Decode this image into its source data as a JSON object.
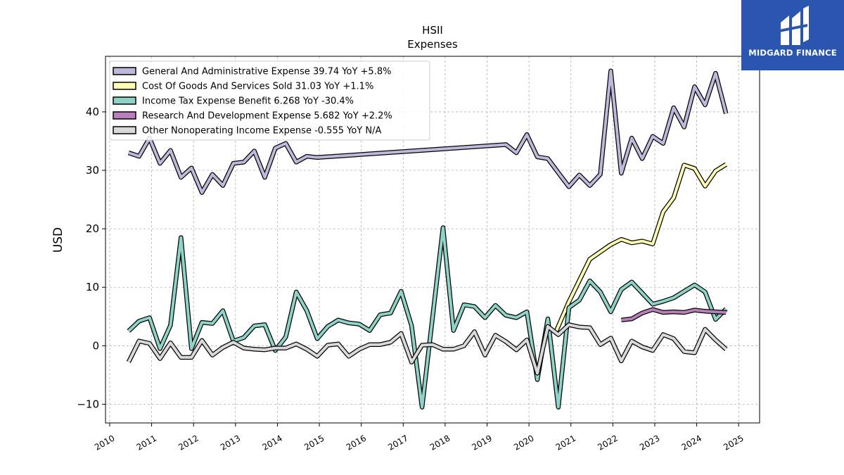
{
  "brand": {
    "name": "MIDGARD FINANCE",
    "background": "#2a56b0"
  },
  "chart_data": {
    "type": "line",
    "title": "HSII",
    "subtitle": "Expenses",
    "xlabel": "",
    "ylabel": "USD",
    "xlim": [
      2009.9,
      2025.5
    ],
    "ylim": [
      -13.2,
      49.5
    ],
    "yticks": [
      -10,
      0,
      10,
      20,
      30,
      40
    ],
    "xticks": [
      2010,
      2011,
      2012,
      2013,
      2014,
      2015,
      2016,
      2017,
      2018,
      2019,
      2020,
      2021,
      2022,
      2023,
      2024,
      2025
    ],
    "grid": true,
    "legend_position": "top-left",
    "series": [
      {
        "name": "General And Administrative Expense",
        "legend": "General And Administrative Expense  39.74 YoY +5.8%",
        "color": "#bcb9da",
        "points": [
          [
            2010.45,
            33.0
          ],
          [
            2010.7,
            32.4
          ],
          [
            2010.95,
            35.5
          ],
          [
            2011.2,
            31.2
          ],
          [
            2011.45,
            33.4
          ],
          [
            2011.7,
            28.8
          ],
          [
            2011.95,
            30.4
          ],
          [
            2012.2,
            26.2
          ],
          [
            2012.45,
            29.3
          ],
          [
            2012.7,
            27.4
          ],
          [
            2012.95,
            31.2
          ],
          [
            2013.2,
            31.4
          ],
          [
            2013.45,
            33.3
          ],
          [
            2013.7,
            28.8
          ],
          [
            2013.95,
            33.8
          ],
          [
            2014.2,
            34.6
          ],
          [
            2014.45,
            31.4
          ],
          [
            2014.7,
            32.4
          ],
          [
            2014.95,
            32.2
          ],
          [
            2019.45,
            34.4
          ],
          [
            2019.7,
            33.0
          ],
          [
            2019.95,
            36.1
          ],
          [
            2020.2,
            32.3
          ],
          [
            2020.45,
            32.0
          ],
          [
            2020.7,
            29.6
          ],
          [
            2020.95,
            27.2
          ],
          [
            2021.2,
            29.2
          ],
          [
            2021.45,
            27.4
          ],
          [
            2021.7,
            29.3
          ],
          [
            2021.95,
            47.0
          ],
          [
            2022.2,
            29.5
          ],
          [
            2022.45,
            35.5
          ],
          [
            2022.7,
            32.0
          ],
          [
            2022.95,
            35.8
          ],
          [
            2023.2,
            34.6
          ],
          [
            2023.45,
            40.7
          ],
          [
            2023.7,
            37.4
          ],
          [
            2023.95,
            44.3
          ],
          [
            2024.2,
            41.2
          ],
          [
            2024.45,
            46.6
          ],
          [
            2024.7,
            39.7
          ]
        ]
      },
      {
        "name": "Cost Of Goods And Services Sold",
        "legend": "Cost Of Goods And Services Sold  31.03 YoY +1.1%",
        "color": "#ffffb3",
        "points": [
          [
            2020.65,
            2.5
          ],
          [
            2020.95,
            7.5
          ],
          [
            2021.45,
            14.8
          ],
          [
            2021.95,
            17.3
          ],
          [
            2022.2,
            18.2
          ],
          [
            2022.45,
            17.6
          ],
          [
            2022.7,
            17.9
          ],
          [
            2022.95,
            17.4
          ],
          [
            2023.2,
            22.9
          ],
          [
            2023.45,
            25.3
          ],
          [
            2023.7,
            30.9
          ],
          [
            2023.95,
            30.3
          ],
          [
            2024.2,
            27.3
          ],
          [
            2024.45,
            29.9
          ],
          [
            2024.7,
            31.0
          ]
        ]
      },
      {
        "name": "Income Tax Expense Benefit",
        "legend": "Income Tax Expense Benefit  6.268 YoY -30.4%",
        "color": "#8dd3c7",
        "points": [
          [
            2010.45,
            2.5
          ],
          [
            2010.7,
            4.2
          ],
          [
            2010.95,
            4.8
          ],
          [
            2011.2,
            -0.5
          ],
          [
            2011.45,
            3.5
          ],
          [
            2011.7,
            18.5
          ],
          [
            2011.95,
            -0.5
          ],
          [
            2012.2,
            4.0
          ],
          [
            2012.45,
            3.8
          ],
          [
            2012.7,
            6.0
          ],
          [
            2012.95,
            0.8
          ],
          [
            2013.2,
            1.4
          ],
          [
            2013.45,
            3.4
          ],
          [
            2013.7,
            3.6
          ],
          [
            2013.95,
            -0.8
          ],
          [
            2014.2,
            1.5
          ],
          [
            2014.45,
            9.2
          ],
          [
            2014.7,
            6.0
          ],
          [
            2014.95,
            1.2
          ],
          [
            2015.2,
            3.3
          ],
          [
            2015.45,
            4.4
          ],
          [
            2015.7,
            3.9
          ],
          [
            2015.95,
            3.7
          ],
          [
            2016.2,
            2.6
          ],
          [
            2016.45,
            5.3
          ],
          [
            2016.7,
            5.6
          ],
          [
            2016.95,
            9.3
          ],
          [
            2017.2,
            3.4
          ],
          [
            2017.45,
            -10.5
          ],
          [
            2017.95,
            20.2
          ],
          [
            2018.2,
            2.6
          ],
          [
            2018.45,
            7.0
          ],
          [
            2018.7,
            6.7
          ],
          [
            2018.95,
            4.8
          ],
          [
            2019.2,
            6.9
          ],
          [
            2019.45,
            5.2
          ],
          [
            2019.7,
            4.8
          ],
          [
            2019.95,
            5.8
          ],
          [
            2020.2,
            -5.8
          ],
          [
            2020.45,
            4.6
          ],
          [
            2020.7,
            -10.5
          ],
          [
            2020.95,
            6.5
          ],
          [
            2021.2,
            7.8
          ],
          [
            2021.45,
            11.1
          ],
          [
            2021.7,
            9.2
          ],
          [
            2021.95,
            5.8
          ],
          [
            2022.2,
            9.6
          ],
          [
            2022.45,
            10.9
          ],
          [
            2022.7,
            9.0
          ],
          [
            2022.95,
            7.1
          ],
          [
            2023.2,
            7.6
          ],
          [
            2023.45,
            8.2
          ],
          [
            2023.7,
            9.3
          ],
          [
            2023.95,
            10.4
          ],
          [
            2024.2,
            9.2
          ],
          [
            2024.45,
            4.5
          ],
          [
            2024.7,
            6.3
          ]
        ]
      },
      {
        "name": "Research And Development Expense",
        "legend": "Research And Development Expense  5.682 YoY +2.2%",
        "color": "#b97fbb",
        "points": [
          [
            2022.2,
            4.4
          ],
          [
            2022.45,
            4.6
          ],
          [
            2022.7,
            5.6
          ],
          [
            2022.95,
            6.2
          ],
          [
            2023.2,
            5.7
          ],
          [
            2023.45,
            5.8
          ],
          [
            2023.7,
            5.7
          ],
          [
            2023.95,
            6.1
          ],
          [
            2024.2,
            5.9
          ],
          [
            2024.45,
            5.8
          ],
          [
            2024.7,
            5.7
          ]
        ]
      },
      {
        "name": "Other Nonoperating Income Expense",
        "legend": "Other Nonoperating Income Expense  -0.555 YoY N/A",
        "color": "#d9d9d9",
        "points": [
          [
            2010.45,
            -2.8
          ],
          [
            2010.7,
            0.8
          ],
          [
            2010.95,
            0.4
          ],
          [
            2011.2,
            -2.2
          ],
          [
            2011.45,
            0.5
          ],
          [
            2011.7,
            -2.0
          ],
          [
            2011.95,
            -2.0
          ],
          [
            2012.2,
            0.9
          ],
          [
            2012.45,
            -1.6
          ],
          [
            2012.7,
            -0.3
          ],
          [
            2012.95,
            0.6
          ],
          [
            2013.2,
            -0.4
          ],
          [
            2013.45,
            -0.6
          ],
          [
            2013.7,
            -0.7
          ],
          [
            2013.95,
            -0.4
          ],
          [
            2014.2,
            -0.4
          ],
          [
            2014.45,
            0.3
          ],
          [
            2014.7,
            -0.6
          ],
          [
            2014.95,
            -1.8
          ],
          [
            2015.2,
            0.1
          ],
          [
            2015.45,
            0.3
          ],
          [
            2015.7,
            -1.8
          ],
          [
            2015.95,
            -0.6
          ],
          [
            2016.2,
            0.2
          ],
          [
            2016.45,
            0.2
          ],
          [
            2016.7,
            0.6
          ],
          [
            2016.95,
            2.1
          ],
          [
            2017.2,
            -2.8
          ],
          [
            2017.45,
            0.1
          ],
          [
            2017.7,
            0.2
          ],
          [
            2017.95,
            -0.6
          ],
          [
            2018.2,
            -0.6
          ],
          [
            2018.45,
            0.0
          ],
          [
            2018.7,
            2.4
          ],
          [
            2018.95,
            -1.6
          ],
          [
            2019.2,
            1.8
          ],
          [
            2019.45,
            0.7
          ],
          [
            2019.7,
            -0.7
          ],
          [
            2019.95,
            1.0
          ],
          [
            2020.2,
            -4.7
          ],
          [
            2020.45,
            3.3
          ],
          [
            2020.7,
            1.9
          ],
          [
            2020.95,
            3.6
          ],
          [
            2021.2,
            3.2
          ],
          [
            2021.45,
            3.1
          ],
          [
            2021.7,
            0.2
          ],
          [
            2021.95,
            1.3
          ],
          [
            2022.2,
            -2.6
          ],
          [
            2022.45,
            0.8
          ],
          [
            2022.7,
            -0.2
          ],
          [
            2022.95,
            -0.8
          ],
          [
            2023.2,
            1.9
          ],
          [
            2023.45,
            1.2
          ],
          [
            2023.7,
            -1.0
          ],
          [
            2023.95,
            -1.2
          ],
          [
            2024.2,
            2.8
          ],
          [
            2024.45,
            1.0
          ],
          [
            2024.7,
            -0.6
          ]
        ]
      }
    ]
  }
}
